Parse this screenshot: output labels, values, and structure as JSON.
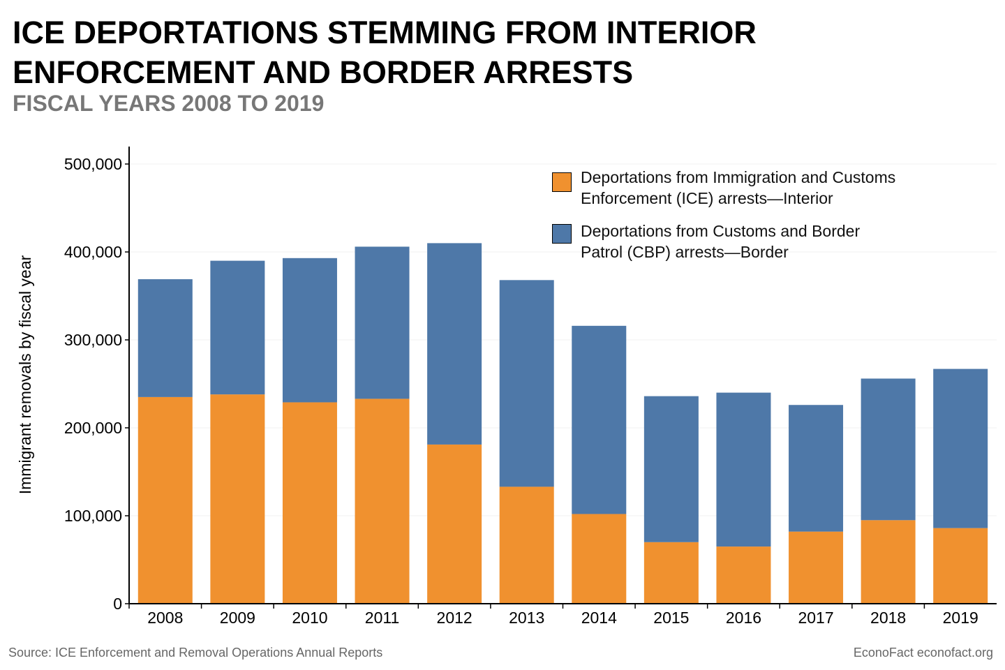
{
  "title_line1": "ICE DEPORTATIONS STEMMING FROM INTERIOR",
  "title_line2": "ENFORCEMENT AND BORDER ARRESTS",
  "subtitle": "FISCAL YEARS 2008 TO 2019",
  "source": "Source: ICE Enforcement and Removal Operations Annual Reports",
  "credit": "EconoFact  econofact.org",
  "chart_data": {
    "type": "bar",
    "stacked": true,
    "ylabel": "Immigrant removals by fiscal year",
    "xlabel": "",
    "ylim": [
      0,
      520000
    ],
    "yticks": [
      0,
      100000,
      200000,
      300000,
      400000,
      500000
    ],
    "ytick_labels": [
      "0",
      "100,000",
      "200,000",
      "300,000",
      "400,000",
      "500,000"
    ],
    "grid": true,
    "legend_placement": "top-right",
    "categories": [
      "2008",
      "2009",
      "2010",
      "2011",
      "2012",
      "2013",
      "2014",
      "2015",
      "2016",
      "2017",
      "2018",
      "2019"
    ],
    "series": [
      {
        "name": "Deportations from Immigration and Customs Enforcement (ICE) arrests—Interior",
        "color": "#F0912F",
        "values": [
          235000,
          238000,
          229000,
          233000,
          181000,
          133000,
          102000,
          70000,
          65000,
          82000,
          95000,
          86000
        ]
      },
      {
        "name": "Deportations from Customs and Border Patrol (CBP) arrests—Border",
        "color": "#4E78A8",
        "values": [
          134000,
          152000,
          164000,
          173000,
          229000,
          235000,
          214000,
          166000,
          175000,
          144000,
          161000,
          181000
        ]
      }
    ],
    "legend_lines": [
      [
        "Deportations from Immigration and Customs",
        "Enforcement (ICE) arrests—Interior"
      ],
      [
        "Deportations from Customs and Border",
        "Patrol (CBP) arrests—Border"
      ]
    ]
  }
}
